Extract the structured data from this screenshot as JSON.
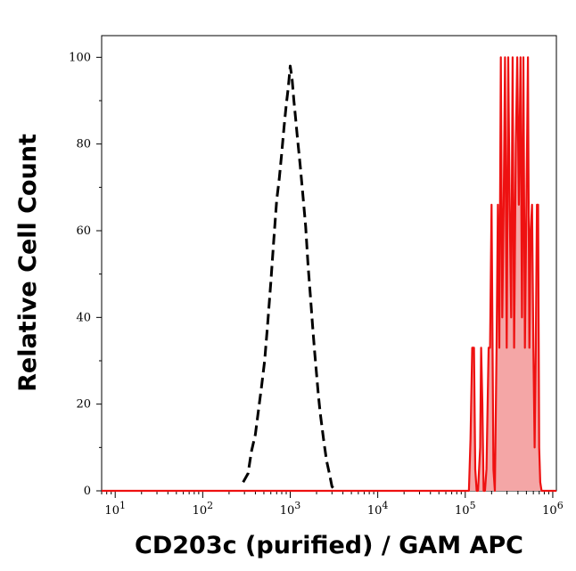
{
  "chart_data": {
    "type": "line",
    "title": "",
    "xlabel": "CD203c (purified) / GAM APC",
    "ylabel": "Relative Cell Count",
    "x_scale": "log",
    "xlim": [
      7,
      1100000
    ],
    "ylim": [
      0,
      105
    ],
    "x_ticks": [
      {
        "value": 10,
        "base": "10",
        "exp": "1"
      },
      {
        "value": 100,
        "base": "10",
        "exp": "2"
      },
      {
        "value": 1000,
        "base": "10",
        "exp": "3"
      },
      {
        "value": 10000,
        "base": "10",
        "exp": "4"
      },
      {
        "value": 100000,
        "base": "10",
        "exp": "5"
      },
      {
        "value": 1000000,
        "base": "10",
        "exp": "6"
      }
    ],
    "y_ticks": [
      {
        "value": 0,
        "label": "0"
      },
      {
        "value": 20,
        "label": "20"
      },
      {
        "value": 40,
        "label": "40"
      },
      {
        "value": 60,
        "label": "60"
      },
      {
        "value": 80,
        "label": "80"
      },
      {
        "value": 100,
        "label": "100"
      }
    ],
    "grid": false,
    "legend": "none",
    "series": [
      {
        "style": "dashed",
        "color": "#000000",
        "fill": "none",
        "x": [
          290,
          330,
          360,
          400,
          430,
          470,
          510,
          550,
          600,
          650,
          700,
          750,
          800,
          850,
          900,
          950,
          1000,
          1050,
          1100,
          1150,
          1200,
          1300,
          1400,
          1500,
          1600,
          1700,
          1800,
          1900,
          2000,
          2100,
          2200,
          2400,
          2600,
          2800,
          3000,
          3300
        ],
        "values": [
          2,
          4,
          9,
          13,
          18,
          24,
          30,
          38,
          48,
          58,
          67,
          72,
          78,
          84,
          89,
          93,
          98,
          95,
          90,
          86,
          82,
          75,
          68,
          61,
          52,
          45,
          38,
          32,
          27,
          22,
          18,
          12,
          7,
          4,
          1,
          0
        ]
      },
      {
        "style": "solid",
        "color": "#ee1111",
        "fill": "#f4a6a6",
        "x": [
          7,
          110000,
          115000,
          120000,
          126000,
          130000,
          135000,
          140000,
          148000,
          152000,
          157000,
          162000,
          168000,
          175000,
          185000,
          192000,
          200000,
          210000,
          218000,
          228000,
          236000,
          245000,
          255000,
          265000,
          275000,
          285000,
          298000,
          310000,
          322000,
          335000,
          348000,
          362000,
          378000,
          393000,
          410000,
          428000,
          445000,
          462000,
          480000,
          500000,
          520000,
          540000,
          560000,
          580000,
          600000,
          620000,
          640000,
          660000,
          680000,
          700000,
          720000,
          745000,
          770000,
          800000,
          1100000
        ],
        "values": [
          0,
          0,
          12,
          33,
          33,
          5,
          0,
          0,
          10,
          33,
          20,
          0,
          0,
          5,
          33,
          33,
          66,
          5,
          0,
          33,
          66,
          33,
          100,
          40,
          66,
          100,
          33,
          100,
          66,
          40,
          100,
          33,
          80,
          100,
          66,
          100,
          40,
          100,
          33,
          66,
          100,
          33,
          60,
          66,
          33,
          10,
          33,
          66,
          66,
          10,
          2,
          0,
          0,
          0,
          0
        ]
      }
    ]
  }
}
